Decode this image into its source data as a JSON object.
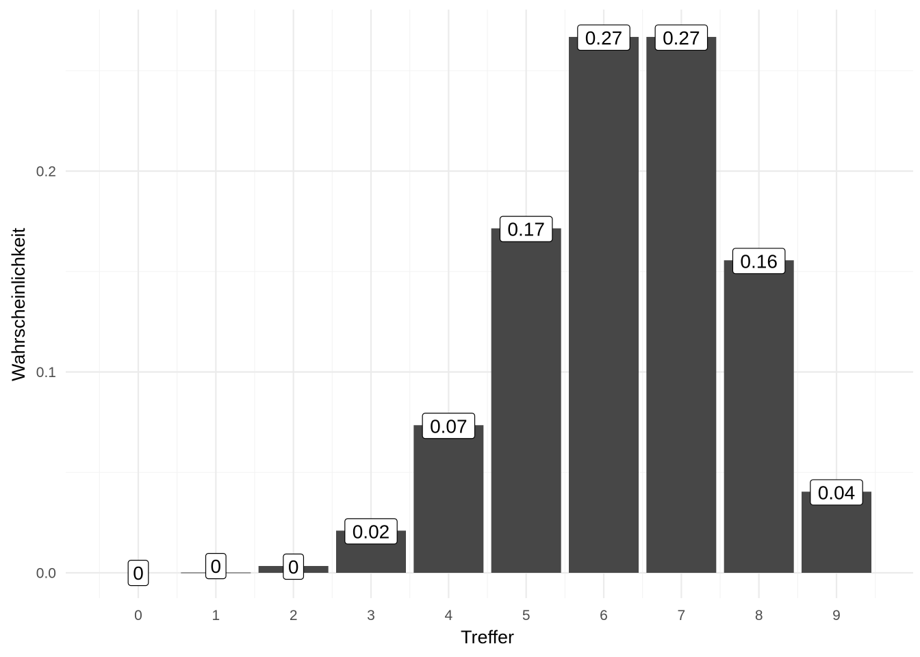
{
  "chart_data": {
    "type": "bar",
    "categories": [
      "0",
      "1",
      "2",
      "3",
      "4",
      "5",
      "6",
      "7",
      "8",
      "9"
    ],
    "values": [
      0.0003,
      0.0037,
      0.0034,
      0.021,
      0.0735,
      0.1715,
      0.2668,
      0.2668,
      0.1556,
      0.0404
    ],
    "data_labels": [
      "0",
      "0",
      "0",
      "0.02",
      "0.07",
      "0.17",
      "0.27",
      "0.27",
      "0.16",
      "0.04"
    ],
    "xlabel": "Treffer",
    "ylabel": "Wahrscheinlichkeit",
    "ylim": [
      -0.013,
      0.28
    ],
    "y_ticks": [
      {
        "value": 0.0,
        "label": "0.0"
      },
      {
        "value": 0.1,
        "label": "0.1"
      },
      {
        "value": 0.2,
        "label": "0.2"
      }
    ],
    "grid": true,
    "colors": {
      "bar": "#474747",
      "grid": "#ebebeb",
      "label_border": "#000000"
    }
  }
}
